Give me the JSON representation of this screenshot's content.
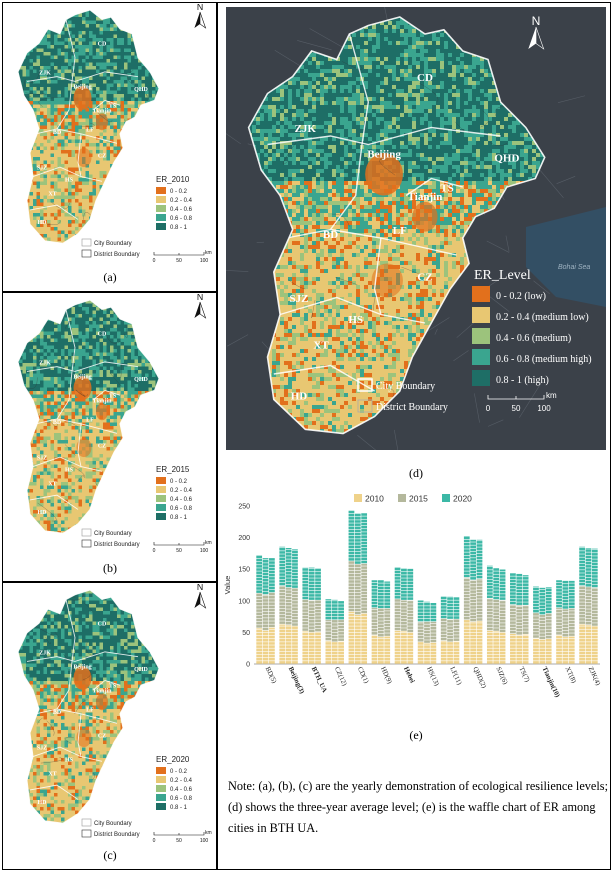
{
  "panels": {
    "a": {
      "label": "(a)",
      "legend_title": "ER_2010"
    },
    "b": {
      "label": "(b)",
      "legend_title": "ER_2015"
    },
    "c": {
      "label": "(c)",
      "legend_title": "ER_2020"
    },
    "d": {
      "label": "(d)",
      "legend_title": "ER_Level"
    },
    "e": {
      "label": "(e)"
    }
  },
  "small_legend_items": [
    "0 - 0.2",
    "0.2 - 0.4",
    "0.4 - 0.6",
    "0.6 - 0.8",
    "0.8 - 1"
  ],
  "big_legend_items": [
    "0 - 0.2 (low)",
    "0.2 - 0.4 (medium low)",
    "0.4 - 0.6 (medium)",
    "0.6 - 0.8 (medium high)",
    "0.8 - 1 (high)"
  ],
  "legend_colors": [
    "#e2701c",
    "#e8c772",
    "#9cc37c",
    "#3aa58f",
    "#1e6e66"
  ],
  "boundary_legend": {
    "city": "City Boundary",
    "district": "District Boundary"
  },
  "scale_bar": {
    "ticks": [
      "0",
      "50",
      "100"
    ],
    "unit": "km"
  },
  "north": "N",
  "sea_label": "Bohai Sea",
  "map_cities_small": [
    {
      "name": "CD"
    },
    {
      "name": "ZJK"
    },
    {
      "name": "Beijing"
    },
    {
      "name": "QHD"
    },
    {
      "name": "TS"
    },
    {
      "name": "Tianjin"
    },
    {
      "name": "BD"
    },
    {
      "name": "LF"
    },
    {
      "name": "SJZ"
    },
    {
      "name": "CZ"
    },
    {
      "name": "HS"
    },
    {
      "name": "XT"
    },
    {
      "name": "HD"
    }
  ],
  "note": "Note: (a), (b), (c) are the yearly demonstration of ecological resilience levels; (d) shows the three-year average level; (e) is the waffle chart of ER among cities in BTH UA.",
  "chart_data": {
    "type": "bar",
    "title": "",
    "xlabel": "",
    "ylabel": "Value",
    "ylim": [
      0,
      250
    ],
    "yticks": [
      0,
      50,
      100,
      150,
      200,
      250
    ],
    "legend_position": "top",
    "series_colors": {
      "2010": "#efd28a",
      "2015": "#b4b89c",
      "2020": "#3cb8a6"
    },
    "categories": [
      "BD(5)",
      "Beijing(3)",
      "BTH_UA",
      "CZ(12)",
      "CD(1)",
      "HD(9)",
      "Hebei",
      "HS(13)",
      "LF(11)",
      "QHD(2)",
      "SJZ(6)",
      "TS(7)",
      "Tianjin(10)",
      "XT(8)",
      "ZJK(4)"
    ],
    "bold_categories": [
      "Beijing(3)",
      "BTH_UA",
      "Hebei",
      "Tianjin(10)"
    ],
    "series": [
      {
        "name": "2010",
        "stacks": [
          [
            57,
            53,
            58
          ],
          [
            63,
            62,
            60
          ],
          [
            52,
            50,
            51
          ],
          [
            37,
            35,
            36
          ],
          [
            83,
            78,
            80
          ],
          [
            46,
            43,
            44
          ],
          [
            53,
            52,
            50
          ],
          [
            35,
            33,
            34
          ],
          [
            37,
            35,
            36
          ],
          [
            70,
            67,
            68
          ],
          [
            53,
            52,
            50
          ],
          [
            48,
            46,
            47
          ],
          [
            41,
            39,
            40
          ],
          [
            46,
            43,
            44
          ],
          [
            63,
            62,
            60
          ]
        ]
      },
      {
        "name": "2015",
        "stacks": [
          [
            55,
            57,
            55
          ],
          [
            61,
            59,
            60
          ],
          [
            50,
            51,
            50
          ],
          [
            33,
            35,
            34
          ],
          [
            80,
            80,
            79
          ],
          [
            43,
            45,
            44
          ],
          [
            50,
            49,
            51
          ],
          [
            32,
            34,
            33
          ],
          [
            35,
            36,
            35
          ],
          [
            67,
            66,
            67
          ],
          [
            51,
            50,
            51
          ],
          [
            46,
            47,
            46
          ],
          [
            40,
            39,
            40
          ],
          [
            43,
            44,
            44
          ],
          [
            61,
            60,
            61
          ]
        ]
      },
      {
        "name": "2020",
        "stacks": [
          [
            60,
            58,
            55
          ],
          [
            62,
            63,
            62
          ],
          [
            51,
            52,
            51
          ],
          [
            33,
            32,
            30
          ],
          [
            80,
            81,
            80
          ],
          [
            44,
            45,
            43
          ],
          [
            50,
            51,
            50
          ],
          [
            34,
            32,
            30
          ],
          [
            35,
            36,
            35
          ],
          [
            66,
            64,
            62
          ],
          [
            52,
            50,
            49
          ],
          [
            50,
            50,
            48
          ],
          [
            42,
            43,
            42
          ],
          [
            44,
            45,
            44
          ],
          [
            62,
            62,
            62
          ]
        ]
      }
    ]
  }
}
